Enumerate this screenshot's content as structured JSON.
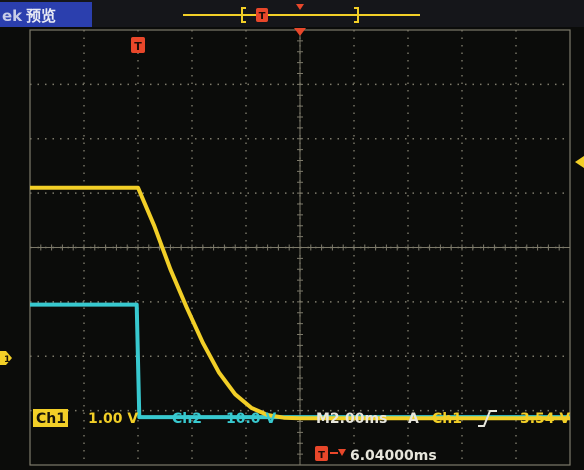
{
  "header": {
    "brand_fragment": "ek",
    "mode_label": "预览",
    "trigger_marker_glyph": "T"
  },
  "markers": {
    "trigger_position_glyph": "T",
    "ch1_ground_glyph": "1"
  },
  "readouts": {
    "ch1_label": "Ch1",
    "ch1_scale": "1.00 V",
    "ch2_label": "Ch2",
    "ch2_scale": "10.0 V",
    "timebase": "M2.00ms",
    "acq_mode": "A",
    "trigger_source": "Ch1",
    "trigger_slope_icon": "rising-edge-icon",
    "trigger_level": "3.54 V",
    "trigger_offset": "6.04000ms"
  },
  "colors": {
    "ch1": "#f2cf27",
    "ch2": "#38c9cf",
    "trigger": "#e8472a",
    "grid": "#7d7a6a",
    "screen": "#0b0c0a",
    "header_bar": "#2b3fae"
  },
  "chart_data": {
    "type": "line",
    "x_unit": "ms",
    "x_range": [
      0,
      20
    ],
    "y_unit": "div",
    "y_range": [
      0,
      8
    ],
    "divisions": {
      "x": 10,
      "y": 8
    },
    "series": [
      {
        "name": "Ch1",
        "color": "#f2cf27",
        "points": [
          [
            0,
            5.1
          ],
          [
            4.0,
            5.1
          ],
          [
            4.6,
            4.4
          ],
          [
            5.2,
            3.6
          ],
          [
            5.8,
            2.9
          ],
          [
            6.4,
            2.25
          ],
          [
            7.0,
            1.7
          ],
          [
            7.6,
            1.3
          ],
          [
            8.2,
            1.05
          ],
          [
            8.8,
            0.92
          ],
          [
            9.4,
            0.87
          ],
          [
            10.0,
            0.86
          ],
          [
            20,
            0.86
          ]
        ]
      },
      {
        "name": "Ch2",
        "color": "#38c9cf",
        "points": [
          [
            0,
            2.95
          ],
          [
            3.95,
            2.95
          ],
          [
            4.05,
            0.88
          ],
          [
            20,
            0.88
          ]
        ]
      }
    ],
    "trigger_position_ms": 3.96
  }
}
